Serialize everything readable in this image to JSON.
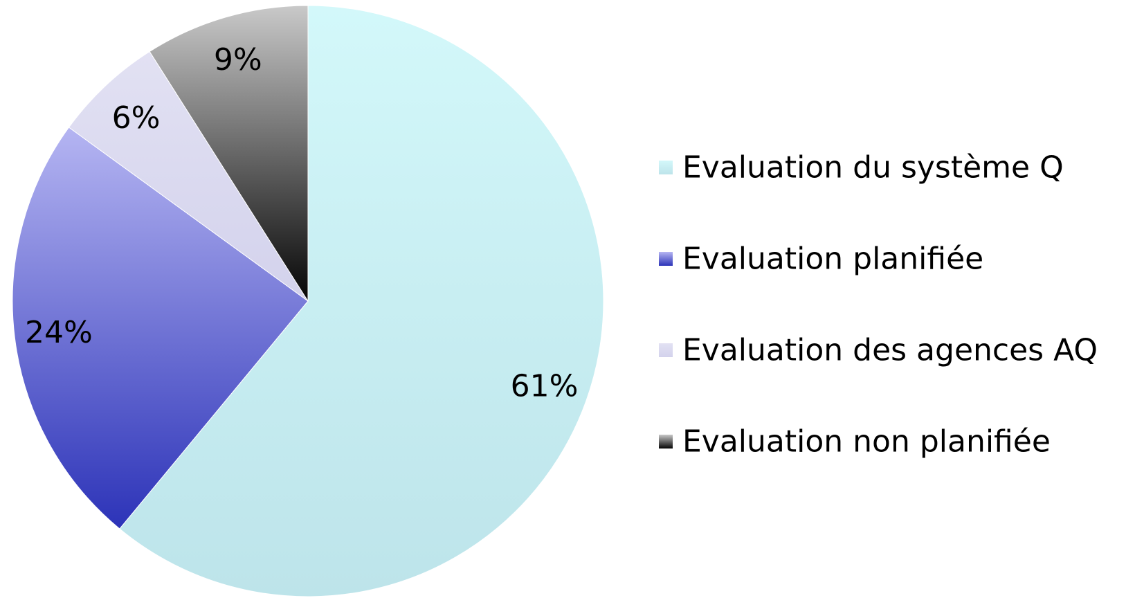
{
  "chart_data": {
    "type": "pie",
    "title": "",
    "slices": [
      {
        "label": "Evaluation du système Q",
        "value": 61,
        "value_label": "61%",
        "color_top": "#d3f8fa",
        "color_bottom": "#bde4ea"
      },
      {
        "label": "Evaluation planifiée",
        "value": 24,
        "value_label": "24%",
        "color_top": "#b5b5f2",
        "color_bottom": "#2c33b8"
      },
      {
        "label": "Evaluation des agences AQ",
        "value": 6,
        "value_label": "6%",
        "color_top": "#e2e1f3",
        "color_bottom": "#d3d2ec"
      },
      {
        "label": "Evaluation non planifiée",
        "value": 9,
        "value_label": "9%",
        "color_top": "#c9c9c9",
        "color_bottom": "#050505"
      }
    ],
    "start_angle_deg": 0,
    "direction": "clockwise",
    "legend_position": "right"
  }
}
